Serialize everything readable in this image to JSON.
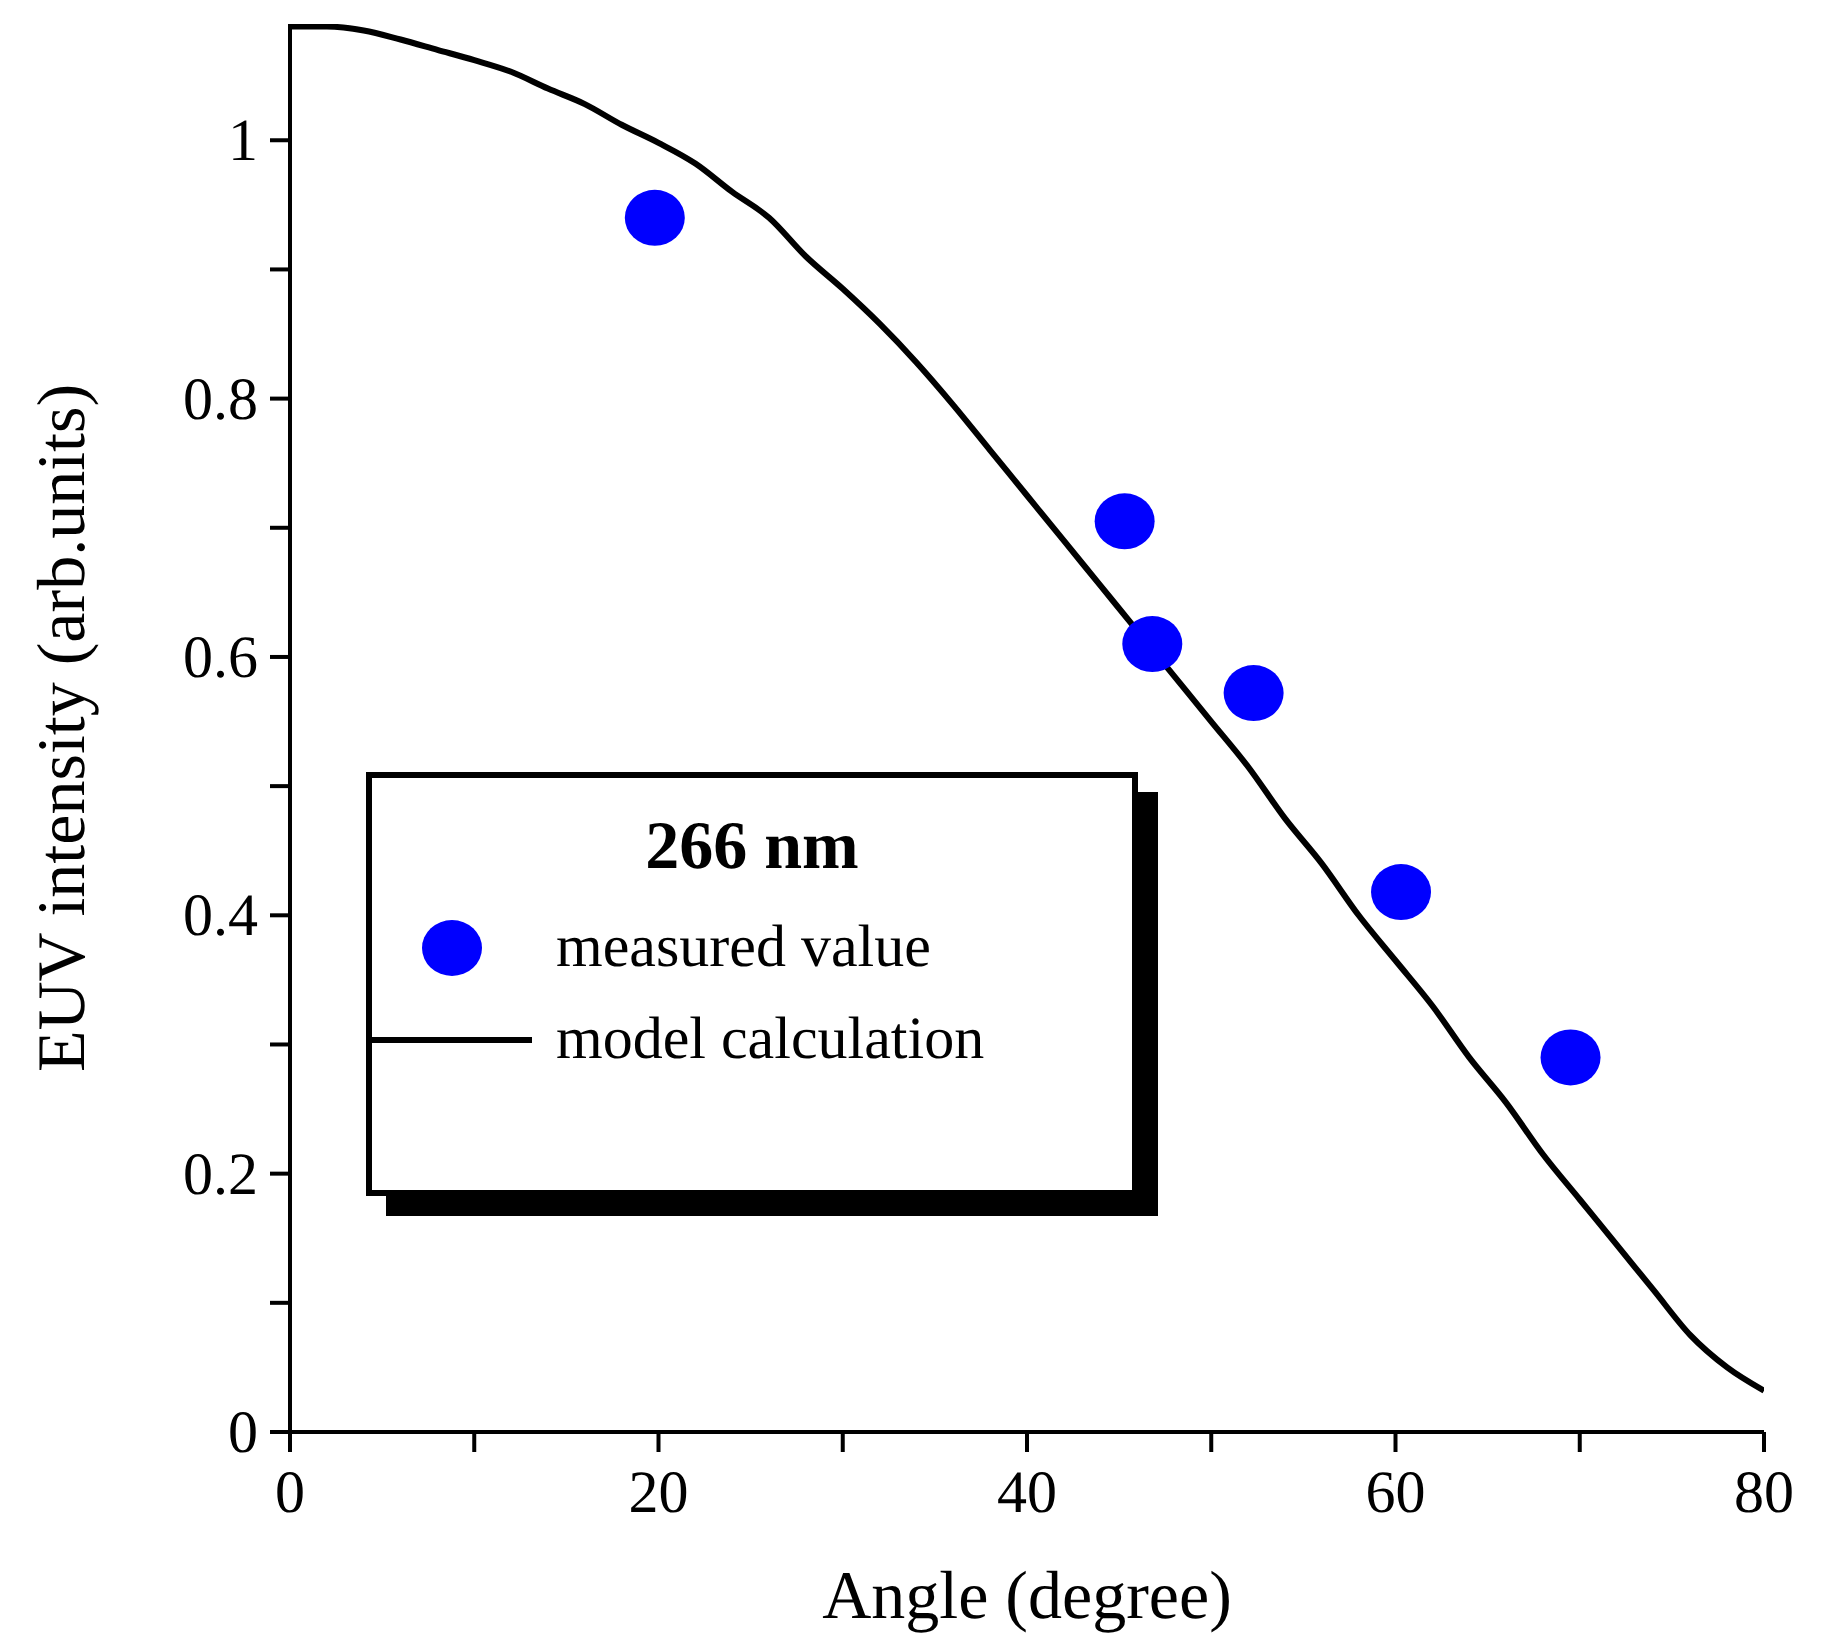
{
  "chart_data": {
    "type": "scatter",
    "xlabel": "Angle (degree)",
    "ylabel": "EUV intensity (arb.units)",
    "legend_title": "266 nm",
    "legend": "bottom left",
    "grid": false,
    "xlim": [
      0,
      80
    ],
    "xticks": [
      0,
      {
        "value": 10,
        "label": null
      },
      20,
      {
        "value": 30,
        "label": null
      },
      40,
      {
        "value": 50,
        "label": null
      },
      60,
      {
        "value": 70,
        "label": null
      },
      80
    ],
    "ylim": [
      0,
      1.09
    ],
    "yticks": [
      0,
      {
        "value": 0.1,
        "label": null
      },
      0.2,
      {
        "value": 0.3,
        "label": null
      },
      0.4,
      {
        "value": 0.5,
        "label": null
      },
      0.6,
      {
        "value": 0.7,
        "label": null
      },
      0.8,
      {
        "value": 0.9,
        "label": null
      },
      1
    ],
    "series": [
      {
        "name": "measured value",
        "type": "scatter",
        "color": "#0000ff",
        "marker": "circle",
        "x": [
          19.8,
          45.3,
          46.8,
          52.3,
          60.3,
          69.5
        ],
        "values": [
          0.94,
          0.705,
          0.61,
          0.572,
          0.418,
          0.29
        ]
      },
      {
        "name": "model calculation",
        "type": "line",
        "color": "#000000",
        "marker": "none",
        "line_style": "solid",
        "x": [
          0,
          2,
          4,
          6,
          8,
          10,
          12,
          14,
          16,
          18,
          20,
          22,
          24,
          26,
          28,
          30,
          32,
          34,
          36,
          38,
          40,
          42,
          44,
          46,
          48,
          50,
          52,
          54,
          56,
          58,
          60,
          62,
          64,
          66,
          68,
          70,
          72,
          74,
          76,
          78,
          80
        ],
        "values": [
          1.088,
          1.088,
          1.085,
          1.078,
          1.07,
          1.062,
          1.053,
          1.04,
          1.028,
          1.012,
          0.998,
          0.982,
          0.96,
          0.94,
          0.91,
          0.885,
          0.858,
          0.828,
          0.795,
          0.76,
          0.725,
          0.69,
          0.655,
          0.62,
          0.585,
          0.55,
          0.515,
          0.475,
          0.44,
          0.4,
          0.365,
          0.33,
          0.29,
          0.255,
          0.215,
          0.18,
          0.145,
          0.11,
          0.075,
          0.05,
          0.032
        ]
      }
    ]
  }
}
